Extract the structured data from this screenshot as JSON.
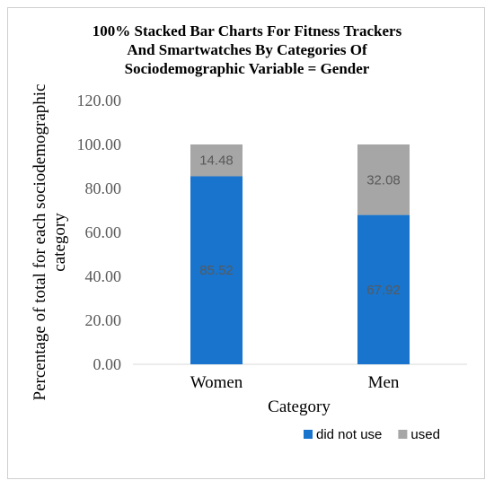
{
  "chart_data": {
    "type": "bar",
    "stacked": true,
    "title_lines": [
      "100% Stacked Bar Charts For Fitness Trackers",
      "And Smartwatches By Categories Of",
      "Sociodemographic Variable = Gender"
    ],
    "xlabel": "Category",
    "ylabel_lines": [
      "Percentage of total for each sociodemographic",
      "category"
    ],
    "categories": [
      "Women",
      "Men"
    ],
    "series": [
      {
        "name": "did not use",
        "color": "#1874cd",
        "values": [
          85.52,
          67.92
        ],
        "labels": [
          "85.52",
          "67.92"
        ]
      },
      {
        "name": "used",
        "color": "#a6a6a6",
        "values": [
          14.48,
          32.08
        ],
        "labels": [
          "14.48",
          "32.08"
        ]
      }
    ],
    "ylim": [
      0,
      120
    ],
    "yticks": [
      "0.00",
      "20.00",
      "40.00",
      "60.00",
      "80.00",
      "100.00",
      "120.00"
    ],
    "ytick_values": [
      0,
      20,
      40,
      60,
      80,
      100,
      120
    ],
    "grid": false,
    "legend_position": "bottom"
  }
}
